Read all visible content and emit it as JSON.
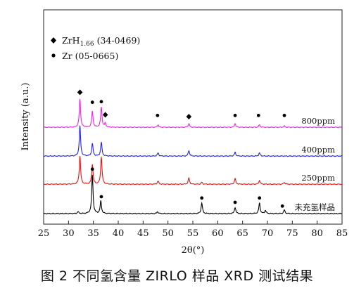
{
  "caption": "图 2   不同氢含量 ZIRLO 样品 XRD 测试结果",
  "chart_data": {
    "type": "line",
    "xlabel": "2θ(°)",
    "ylabel": "Intensity (a.u.)",
    "xlim": [
      25,
      85
    ],
    "xticks": [
      25,
      30,
      35,
      40,
      45,
      50,
      55,
      60,
      65,
      70,
      75,
      80,
      85
    ],
    "yticks_shown": false,
    "grid": false,
    "legend": {
      "placement": "top-left",
      "entries": [
        {
          "marker": "diamond",
          "label_main": "ZrH",
          "label_sub": "1.66",
          "label_tail": " (34-0469)"
        },
        {
          "marker": "dot",
          "label_main": "Zr (05-0665)",
          "label_sub": "",
          "label_tail": ""
        }
      ]
    },
    "series": [
      {
        "name": "未充氢样品",
        "color": "#000000",
        "offset": 0.0,
        "peaks": [
          [
            31.9,
            0.03
          ],
          [
            34.8,
            0.62
          ],
          [
            36.5,
            0.2
          ],
          [
            47.9,
            0.03
          ],
          [
            56.8,
            0.17
          ],
          [
            63.5,
            0.1
          ],
          [
            68.4,
            0.17
          ],
          [
            69.6,
            0.05
          ],
          [
            73.4,
            0.06
          ]
        ]
      },
      {
        "name": "250ppm",
        "color": "#ee1111",
        "offset": 0.47,
        "peaks": [
          [
            32.3,
            0.45
          ],
          [
            34.8,
            0.32
          ],
          [
            36.6,
            0.44
          ],
          [
            48.0,
            0.05
          ],
          [
            54.2,
            0.1
          ],
          [
            56.8,
            0.03
          ],
          [
            63.5,
            0.09
          ],
          [
            68.4,
            0.06
          ],
          [
            73.4,
            0.03
          ]
        ]
      },
      {
        "name": "400ppm",
        "color": "#2222ee",
        "offset": 0.92,
        "peaks": [
          [
            32.3,
            0.48
          ],
          [
            34.8,
            0.2
          ],
          [
            36.6,
            0.22
          ],
          [
            48.0,
            0.05
          ],
          [
            54.2,
            0.09
          ],
          [
            63.5,
            0.06
          ],
          [
            68.4,
            0.05
          ]
        ]
      },
      {
        "name": "800ppm",
        "color": "#ee22ee",
        "offset": 1.38,
        "peaks": [
          [
            32.3,
            0.45
          ],
          [
            34.8,
            0.25
          ],
          [
            36.6,
            0.32
          ],
          [
            37.4,
            0.06
          ],
          [
            48.0,
            0.04
          ],
          [
            54.2,
            0.06
          ],
          [
            63.5,
            0.06
          ],
          [
            68.4,
            0.04
          ],
          [
            73.4,
            0.02
          ]
        ]
      }
    ],
    "markers": [
      {
        "x": 32.3,
        "level": 1.94,
        "type": "diamond"
      },
      {
        "x": 34.8,
        "level": 1.78,
        "type": "dot"
      },
      {
        "x": 36.6,
        "level": 1.79,
        "type": "dot"
      },
      {
        "x": 37.4,
        "level": 1.58,
        "type": "diamond"
      },
      {
        "x": 47.9,
        "level": 1.57,
        "type": "dot"
      },
      {
        "x": 54.2,
        "level": 1.55,
        "type": "diamond"
      },
      {
        "x": 63.5,
        "level": 1.57,
        "type": "dot"
      },
      {
        "x": 68.2,
        "level": 1.57,
        "type": "dot"
      },
      {
        "x": 73.4,
        "level": 1.57,
        "type": "dot"
      },
      {
        "x": 34.8,
        "level": 0.71,
        "type": "dot"
      },
      {
        "x": 36.6,
        "level": 0.27,
        "type": "dot"
      },
      {
        "x": 56.8,
        "level": 0.25,
        "type": "dot"
      },
      {
        "x": 63.5,
        "level": 0.18,
        "type": "dot"
      },
      {
        "x": 68.4,
        "level": 0.25,
        "type": "dot"
      },
      {
        "x": 73.0,
        "level": 0.12,
        "type": "dot"
      }
    ]
  }
}
